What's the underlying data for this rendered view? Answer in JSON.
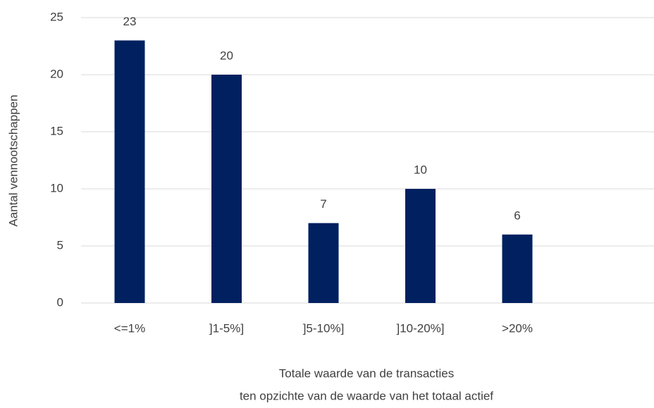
{
  "chart_data": {
    "type": "bar",
    "ylabel": "Aantal vennootschappen",
    "xlabel": [
      "Totale waarde van de transacties",
      "ten opzichte van de waarde van het totaal actief"
    ],
    "categories": [
      "<=1%",
      "]1-5%]",
      "]5-10%]",
      "]10-20%]",
      ">20%"
    ],
    "values": [
      23,
      20,
      7,
      10,
      6
    ],
    "color": "#002060",
    "ylim": [
      0,
      25
    ],
    "yticks": [
      0,
      5,
      10,
      15,
      20,
      25
    ],
    "grid": true
  }
}
